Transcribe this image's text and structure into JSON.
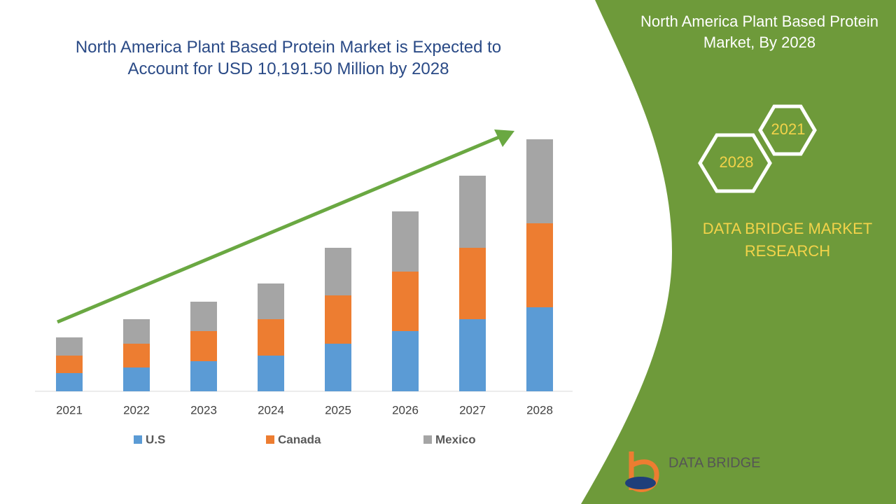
{
  "chart_data": {
    "type": "bar",
    "stacked": true,
    "title": "North America Plant Based Protein Market is Expected to Account for USD 10,191.50 Million by 2028",
    "categories": [
      "2021",
      "2022",
      "2023",
      "2024",
      "2025",
      "2026",
      "2027",
      "2028"
    ],
    "series": [
      {
        "name": "U.S",
        "color": "#5b9bd5",
        "values": [
          26,
          34,
          43,
          51,
          68,
          86,
          103,
          120
        ]
      },
      {
        "name": "Canada",
        "color": "#ed7d31",
        "values": [
          25,
          34,
          43,
          52,
          69,
          85,
          102,
          120
        ]
      },
      {
        "name": "Mexico",
        "color": "#a5a5a5",
        "values": [
          26,
          35,
          42,
          51,
          68,
          86,
          103,
          120
        ]
      }
    ]
  },
  "panel": {
    "title": "North America Plant Based Protein Market, By 2028",
    "years": [
      "2028",
      "2021"
    ],
    "brand": "DATA BRIDGE MARKET RESEARCH",
    "logo": "DATA BRIDGE"
  }
}
